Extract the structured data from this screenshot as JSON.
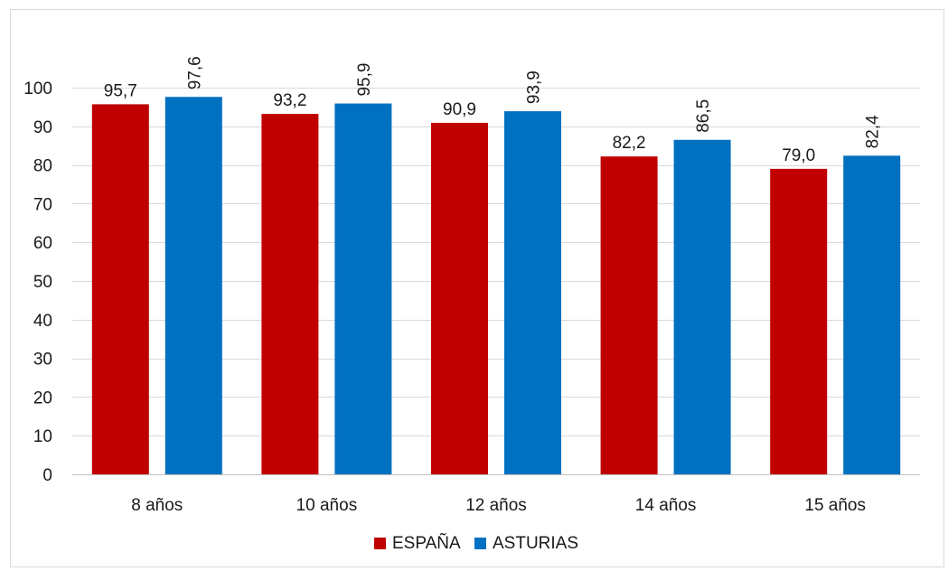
{
  "chart_data": {
    "type": "bar",
    "title": "",
    "xlabel": "",
    "ylabel": "",
    "categories": [
      "8 años",
      "10 años",
      "12 años",
      "14 años",
      "15 años"
    ],
    "series": [
      {
        "name": "ESPAÑA",
        "color": "#c00000",
        "values": [
          95.7,
          93.2,
          90.9,
          82.2,
          79.0
        ],
        "labels": [
          "95,7",
          "93,2",
          "90,9",
          "82,2",
          "79,0"
        ],
        "label_rotation": 0
      },
      {
        "name": "ASTURIAS",
        "color": "#0070c0",
        "values": [
          97.6,
          95.9,
          93.9,
          86.5,
          82.4
        ],
        "labels": [
          "97,6",
          "95,9",
          "93,9",
          "86,5",
          "82,4"
        ],
        "label_rotation": -90
      }
    ],
    "ylim": [
      0,
      100
    ],
    "yticks": [
      0,
      10,
      20,
      30,
      40,
      50,
      60,
      70,
      80,
      90,
      100
    ],
    "grid": true,
    "grid_color": "#d9d9d9",
    "axis_color": "#bfbfbf",
    "legend": "bottom"
  }
}
